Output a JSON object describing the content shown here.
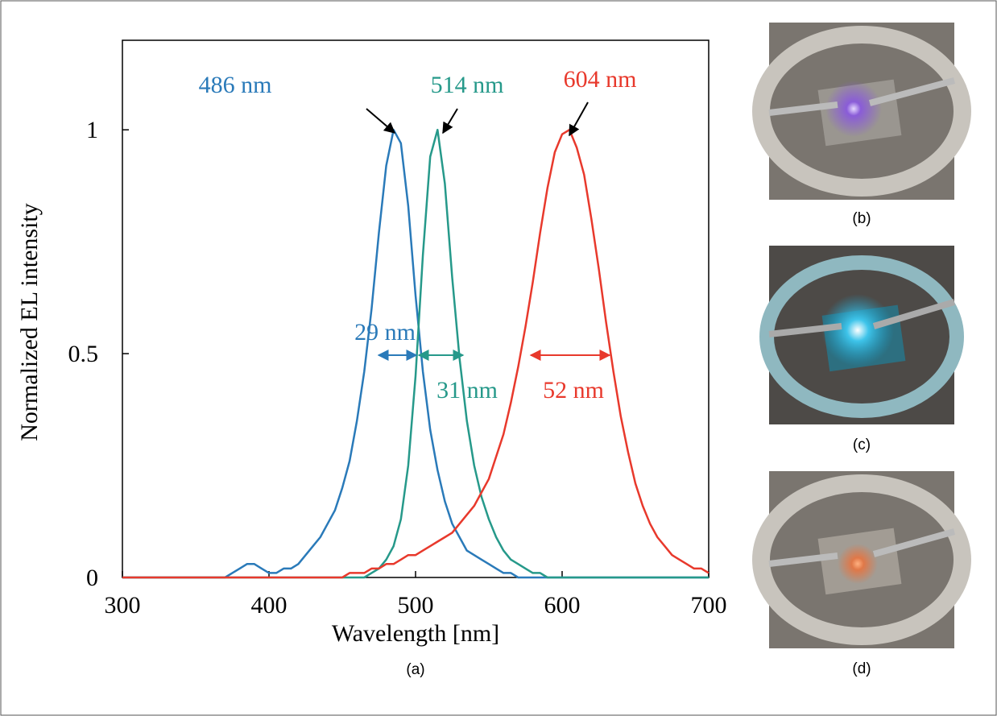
{
  "chart_data": {
    "type": "line",
    "xlabel": "Wavelength [nm]",
    "ylabel": "Normalized EL intensity",
    "caption": "(a)",
    "xlim": [
      300,
      700
    ],
    "xticks": [
      300,
      400,
      500,
      600,
      700
    ],
    "ylim": [
      0,
      1.2
    ],
    "yticks": [
      0,
      0.5,
      1
    ],
    "x": [
      300,
      305,
      310,
      315,
      320,
      325,
      330,
      335,
      340,
      345,
      350,
      355,
      360,
      365,
      370,
      375,
      380,
      385,
      390,
      395,
      400,
      405,
      410,
      415,
      420,
      425,
      430,
      435,
      440,
      445,
      450,
      455,
      460,
      465,
      470,
      475,
      480,
      485,
      490,
      495,
      500,
      505,
      510,
      515,
      520,
      525,
      530,
      535,
      540,
      545,
      550,
      555,
      560,
      565,
      570,
      575,
      580,
      585,
      590,
      595,
      600,
      605,
      610,
      615,
      620,
      625,
      630,
      635,
      640,
      645,
      650,
      655,
      660,
      665,
      670,
      675,
      680,
      685,
      690,
      695,
      700
    ],
    "series": [
      {
        "color": "#2a7ab9",
        "values": [
          0,
          0,
          0,
          0,
          0,
          0,
          0,
          0,
          0,
          0,
          0,
          0,
          0,
          0,
          0,
          0.01,
          0.02,
          0.03,
          0.03,
          0.02,
          0.01,
          0.01,
          0.02,
          0.02,
          0.03,
          0.05,
          0.07,
          0.09,
          0.12,
          0.15,
          0.2,
          0.26,
          0.35,
          0.46,
          0.6,
          0.77,
          0.92,
          1.0,
          0.97,
          0.83,
          0.63,
          0.46,
          0.33,
          0.24,
          0.17,
          0.12,
          0.09,
          0.06,
          0.05,
          0.04,
          0.03,
          0.02,
          0.01,
          0.01,
          0,
          0,
          0,
          0,
          0,
          0,
          0,
          0,
          0,
          0,
          0,
          0,
          0,
          0,
          0,
          0,
          0,
          0,
          0,
          0,
          0,
          0,
          0,
          0,
          0,
          0,
          0
        ]
      },
      {
        "color": "#26998a",
        "values": [
          0,
          0,
          0,
          0,
          0,
          0,
          0,
          0,
          0,
          0,
          0,
          0,
          0,
          0,
          0,
          0,
          0,
          0,
          0,
          0,
          0,
          0,
          0,
          0,
          0,
          0,
          0,
          0,
          0,
          0,
          0,
          0,
          0,
          0,
          0.01,
          0.02,
          0.04,
          0.07,
          0.13,
          0.25,
          0.45,
          0.72,
          0.94,
          1.0,
          0.88,
          0.67,
          0.49,
          0.35,
          0.25,
          0.18,
          0.13,
          0.09,
          0.06,
          0.04,
          0.03,
          0.02,
          0.01,
          0.01,
          0,
          0,
          0,
          0,
          0,
          0,
          0,
          0,
          0,
          0,
          0,
          0,
          0,
          0,
          0,
          0,
          0,
          0,
          0,
          0,
          0,
          0,
          0
        ]
      },
      {
        "color": "#e8392c",
        "values": [
          0,
          0,
          0,
          0,
          0,
          0,
          0,
          0,
          0,
          0,
          0,
          0,
          0,
          0,
          0,
          0,
          0,
          0,
          0,
          0,
          0,
          0,
          0,
          0,
          0,
          0,
          0,
          0,
          0,
          0,
          0,
          0.01,
          0.01,
          0.01,
          0.02,
          0.02,
          0.03,
          0.03,
          0.04,
          0.05,
          0.05,
          0.06,
          0.07,
          0.08,
          0.09,
          0.1,
          0.12,
          0.14,
          0.16,
          0.19,
          0.22,
          0.27,
          0.32,
          0.39,
          0.47,
          0.56,
          0.66,
          0.77,
          0.87,
          0.95,
          0.99,
          1.0,
          0.96,
          0.9,
          0.8,
          0.69,
          0.57,
          0.46,
          0.36,
          0.28,
          0.21,
          0.16,
          0.12,
          0.09,
          0.07,
          0.05,
          0.04,
          0.03,
          0.02,
          0.02,
          0.01
        ]
      }
    ],
    "annotations": [
      {
        "text": "486 nm"
      },
      {
        "text": "514 nm"
      },
      {
        "text": "604 nm"
      },
      {
        "text": "29 nm"
      },
      {
        "text": "31 nm"
      },
      {
        "text": "52 nm"
      }
    ]
  },
  "photos": [
    {
      "caption": "(b)"
    },
    {
      "caption": "(c)"
    },
    {
      "caption": "(d)"
    }
  ]
}
